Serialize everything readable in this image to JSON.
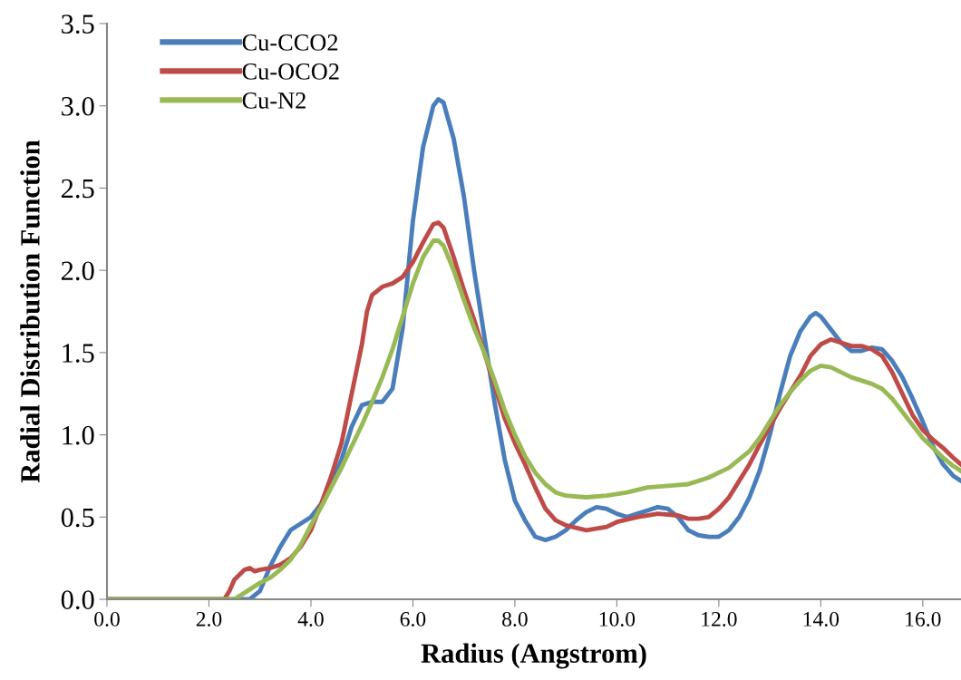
{
  "chart_data": {
    "type": "line",
    "xlabel": "Radius (Angstrom)",
    "ylabel": "Radial Distribution Function",
    "xlim": [
      0,
      16.75
    ],
    "ylim": [
      0,
      3.5
    ],
    "xticks": [
      {
        "value": 0,
        "label": "0.0"
      },
      {
        "value": 2,
        "label": "2.0"
      },
      {
        "value": 4,
        "label": "4.0"
      },
      {
        "value": 6,
        "label": "6.0"
      },
      {
        "value": 8,
        "label": "8.0"
      },
      {
        "value": 10,
        "label": "10.0"
      },
      {
        "value": 12,
        "label": "12.0"
      },
      {
        "value": 14,
        "label": "14.0"
      },
      {
        "value": 16,
        "label": "16.0"
      }
    ],
    "yticks": [
      {
        "value": 0,
        "label": "0.0"
      },
      {
        "value": 0.5,
        "label": "0.5"
      },
      {
        "value": 1,
        "label": "1.0"
      },
      {
        "value": 1.5,
        "label": "1.5"
      },
      {
        "value": 2,
        "label": "2.0"
      },
      {
        "value": 2.5,
        "label": "2.5"
      },
      {
        "value": 3,
        "label": "3.0"
      },
      {
        "value": 3.5,
        "label": "3.5"
      }
    ],
    "grid": false,
    "legend": "top left",
    "marker": "none",
    "line_style": "solid",
    "series": [
      {
        "name": "Cu-CCO2",
        "color": "#4a7ebb",
        "x": [
          0,
          2.8,
          3.0,
          3.2,
          3.4,
          3.6,
          3.8,
          4.0,
          4.2,
          4.4,
          4.6,
          4.8,
          5.0,
          5.2,
          5.4,
          5.6,
          5.8,
          6.0,
          6.2,
          6.4,
          6.5,
          6.6,
          6.8,
          7.0,
          7.2,
          7.4,
          7.6,
          7.8,
          8.0,
          8.2,
          8.4,
          8.6,
          8.8,
          9.0,
          9.2,
          9.4,
          9.6,
          9.8,
          10.0,
          10.2,
          10.4,
          10.6,
          10.8,
          11.0,
          11.2,
          11.4,
          11.6,
          11.8,
          12.0,
          12.2,
          12.4,
          12.6,
          12.8,
          13.0,
          13.2,
          13.4,
          13.6,
          13.8,
          13.9,
          14.0,
          14.2,
          14.4,
          14.6,
          14.8,
          15.0,
          15.2,
          15.4,
          15.6,
          15.8,
          16.0,
          16.2,
          16.4,
          16.6,
          16.75
        ],
        "values": [
          0,
          0,
          0.05,
          0.2,
          0.32,
          0.42,
          0.46,
          0.5,
          0.58,
          0.7,
          0.85,
          1.05,
          1.18,
          1.2,
          1.2,
          1.28,
          1.65,
          2.3,
          2.75,
          3.0,
          3.04,
          3.02,
          2.8,
          2.45,
          2.0,
          1.6,
          1.2,
          0.85,
          0.6,
          0.48,
          0.38,
          0.36,
          0.38,
          0.42,
          0.48,
          0.53,
          0.56,
          0.55,
          0.52,
          0.5,
          0.52,
          0.54,
          0.56,
          0.55,
          0.5,
          0.42,
          0.39,
          0.38,
          0.38,
          0.42,
          0.5,
          0.62,
          0.78,
          1.0,
          1.25,
          1.48,
          1.63,
          1.72,
          1.74,
          1.72,
          1.64,
          1.56,
          1.51,
          1.51,
          1.53,
          1.52,
          1.45,
          1.35,
          1.22,
          1.08,
          0.93,
          0.82,
          0.75,
          0.72
        ]
      },
      {
        "name": "Cu-OCO2",
        "color": "#be4b48",
        "x": [
          0,
          2.3,
          2.4,
          2.5,
          2.7,
          2.8,
          2.9,
          3.0,
          3.2,
          3.4,
          3.6,
          3.8,
          4.0,
          4.2,
          4.4,
          4.6,
          4.8,
          5.0,
          5.1,
          5.2,
          5.4,
          5.6,
          5.8,
          6.0,
          6.2,
          6.4,
          6.5,
          6.6,
          6.8,
          7.0,
          7.2,
          7.4,
          7.6,
          7.8,
          8.0,
          8.2,
          8.4,
          8.6,
          8.8,
          9.0,
          9.4,
          9.8,
          10.0,
          10.4,
          10.8,
          11.2,
          11.4,
          11.6,
          11.8,
          12.0,
          12.2,
          12.4,
          12.6,
          12.8,
          13.0,
          13.2,
          13.4,
          13.6,
          13.8,
          14.0,
          14.2,
          14.4,
          14.6,
          14.8,
          15.0,
          15.2,
          15.4,
          15.6,
          15.8,
          16.0,
          16.2,
          16.4,
          16.6,
          16.75
        ],
        "values": [
          0,
          0,
          0.05,
          0.12,
          0.18,
          0.19,
          0.17,
          0.18,
          0.19,
          0.21,
          0.25,
          0.32,
          0.42,
          0.58,
          0.75,
          0.95,
          1.25,
          1.55,
          1.75,
          1.85,
          1.9,
          1.92,
          1.96,
          2.05,
          2.17,
          2.28,
          2.29,
          2.26,
          2.08,
          1.88,
          1.7,
          1.5,
          1.3,
          1.1,
          0.95,
          0.82,
          0.68,
          0.55,
          0.48,
          0.45,
          0.42,
          0.44,
          0.47,
          0.5,
          0.52,
          0.51,
          0.49,
          0.49,
          0.5,
          0.55,
          0.62,
          0.72,
          0.82,
          0.94,
          1.05,
          1.16,
          1.26,
          1.36,
          1.48,
          1.55,
          1.58,
          1.56,
          1.54,
          1.54,
          1.52,
          1.48,
          1.38,
          1.25,
          1.12,
          1.03,
          0.97,
          0.92,
          0.86,
          0.82
        ]
      },
      {
        "name": "Cu-N2",
        "color": "#98b954",
        "x": [
          0,
          2.5,
          2.6,
          2.8,
          3.0,
          3.2,
          3.4,
          3.6,
          3.8,
          4.0,
          4.2,
          4.4,
          4.6,
          4.8,
          5.0,
          5.2,
          5.4,
          5.6,
          5.8,
          6.0,
          6.2,
          6.4,
          6.5,
          6.6,
          6.8,
          7.0,
          7.2,
          7.4,
          7.6,
          7.8,
          8.0,
          8.2,
          8.4,
          8.6,
          8.8,
          9.0,
          9.4,
          9.8,
          10.2,
          10.6,
          11.0,
          11.4,
          11.8,
          12.2,
          12.6,
          12.8,
          13.0,
          13.2,
          13.4,
          13.6,
          13.8,
          14.0,
          14.2,
          14.4,
          14.6,
          15.0,
          15.2,
          15.4,
          15.6,
          15.8,
          16.0,
          16.2,
          16.4,
          16.6,
          16.75
        ],
        "values": [
          0,
          0,
          0.02,
          0.06,
          0.1,
          0.13,
          0.18,
          0.24,
          0.33,
          0.45,
          0.56,
          0.68,
          0.8,
          0.93,
          1.06,
          1.2,
          1.35,
          1.52,
          1.72,
          1.92,
          2.08,
          2.18,
          2.18,
          2.15,
          2.0,
          1.82,
          1.65,
          1.5,
          1.33,
          1.15,
          1.0,
          0.87,
          0.77,
          0.7,
          0.65,
          0.63,
          0.62,
          0.63,
          0.65,
          0.68,
          0.69,
          0.7,
          0.74,
          0.8,
          0.9,
          0.98,
          1.08,
          1.18,
          1.26,
          1.33,
          1.39,
          1.42,
          1.41,
          1.38,
          1.35,
          1.31,
          1.28,
          1.22,
          1.14,
          1.06,
          0.98,
          0.92,
          0.86,
          0.81,
          0.78
        ]
      }
    ]
  }
}
